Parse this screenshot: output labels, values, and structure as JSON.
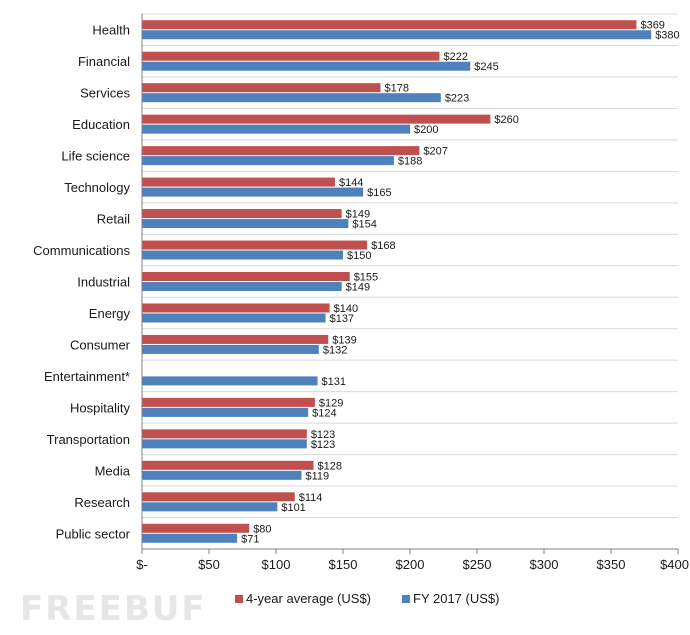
{
  "watermark": "FREEBUF",
  "chart_data": {
    "type": "bar",
    "orientation": "horizontal",
    "categories": [
      "Health",
      "Financial",
      "Services",
      "Education",
      "Life science",
      "Technology",
      "Retail",
      "Communications",
      "Industrial",
      "Energy",
      "Consumer",
      "Entertainment*",
      "Hospitality",
      "Transportation",
      "Media",
      "Research",
      "Public sector"
    ],
    "series": [
      {
        "name": "4-year average (US$)",
        "color": "#c0504d",
        "values": [
          369,
          222,
          178,
          260,
          207,
          144,
          149,
          168,
          155,
          140,
          139,
          null,
          129,
          123,
          128,
          114,
          80
        ],
        "labels": [
          "$369",
          "$222",
          "$178",
          "$260",
          "$207",
          "$144",
          "$149",
          "$168",
          "$155",
          "$140",
          "$139",
          "",
          "$129",
          "$123",
          "$128",
          "$114",
          "$80"
        ]
      },
      {
        "name": "FY 2017 (US$)",
        "color": "#4f81bd",
        "values": [
          380,
          245,
          223,
          200,
          188,
          165,
          154,
          150,
          149,
          137,
          132,
          131,
          124,
          123,
          119,
          101,
          71
        ],
        "labels": [
          "$380",
          "$245",
          "$223",
          "$200",
          "$188",
          "$165",
          "$154",
          "$150",
          "$149",
          "$137",
          "$132",
          "$131",
          "$124",
          "$123",
          "$119",
          "$101",
          "$71"
        ]
      }
    ],
    "xlim": [
      0,
      400
    ],
    "xticks": [
      0,
      50,
      100,
      150,
      200,
      250,
      300,
      350,
      400
    ],
    "xtick_labels": [
      "$-",
      "$50",
      "$100",
      "$150",
      "$200",
      "$250",
      "$300",
      "$350",
      "$400"
    ],
    "title": "",
    "xlabel": "",
    "ylabel": "",
    "grid": "horizontal separators between categories",
    "legend_position": "bottom"
  }
}
